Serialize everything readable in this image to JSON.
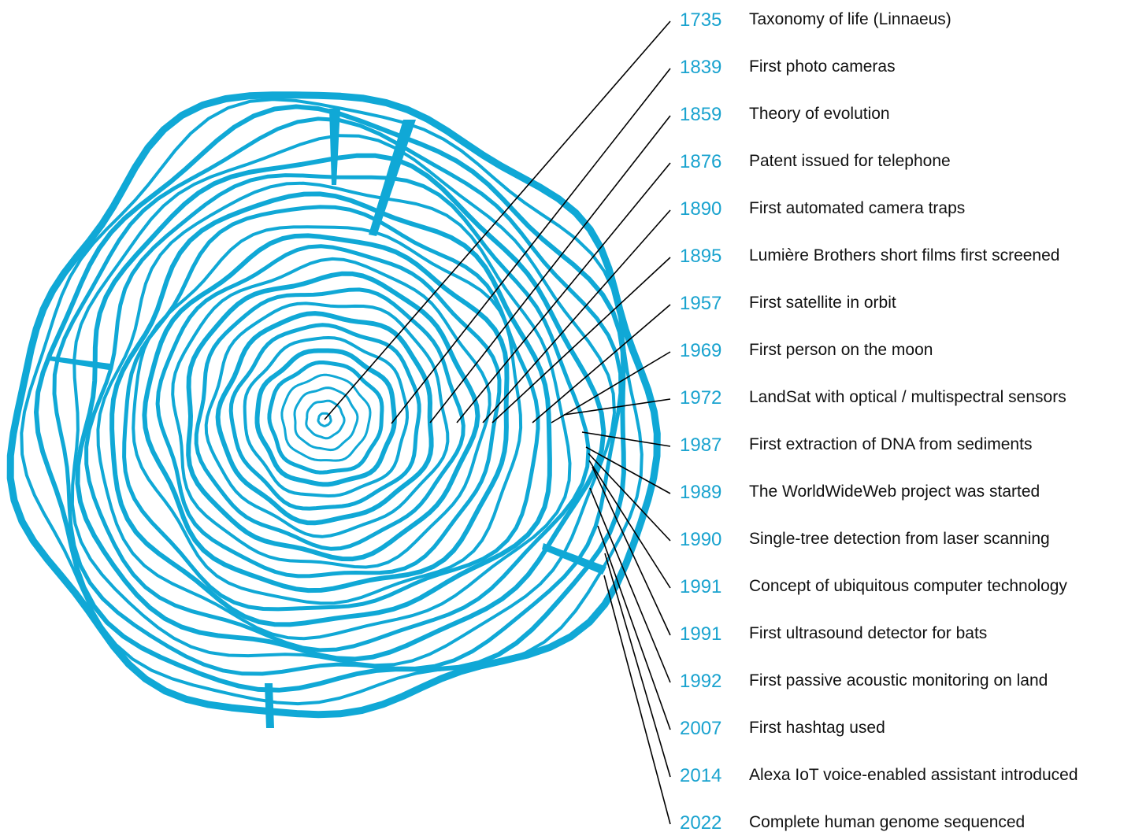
{
  "colors": {
    "ring": "#10a8d6",
    "year": "#1aa3cf",
    "text": "#111111",
    "line": "#000000"
  },
  "events": [
    {
      "year": "1735",
      "label": "Taxonomy of life (Linnaeus)"
    },
    {
      "year": "1839",
      "label": "First photo cameras"
    },
    {
      "year": "1859",
      "label": "Theory of evolution"
    },
    {
      "year": "1876",
      "label": "Patent issued for telephone"
    },
    {
      "year": "1890",
      "label": "First automated camera traps"
    },
    {
      "year": "1895",
      "label": "Lumière Brothers short films first screened"
    },
    {
      "year": "1957",
      "label": "First satellite in orbit"
    },
    {
      "year": "1969",
      "label": "First person on the moon"
    },
    {
      "year": "1972",
      "label": "LandSat with optical / multispectral sensors"
    },
    {
      "year": "1987",
      "label": "First extraction of DNA from sediments"
    },
    {
      "year": "1989",
      "label": "The WorldWideWeb project was started"
    },
    {
      "year": "1990",
      "label": "Single-tree detection from laser scanning"
    },
    {
      "year": "1991",
      "label": "Concept of ubiquitous computer technology"
    },
    {
      "year": "1991",
      "label": "First ultrasound detector for bats"
    },
    {
      "year": "1992",
      "label": "First passive acoustic monitoring on land"
    },
    {
      "year": "2007",
      "label": "First hashtag used"
    },
    {
      "year": "2014",
      "label": "Alexa IoT voice-enabled assistant introduced"
    },
    {
      "year": "2022",
      "label": "Complete human genome sequenced"
    }
  ]
}
